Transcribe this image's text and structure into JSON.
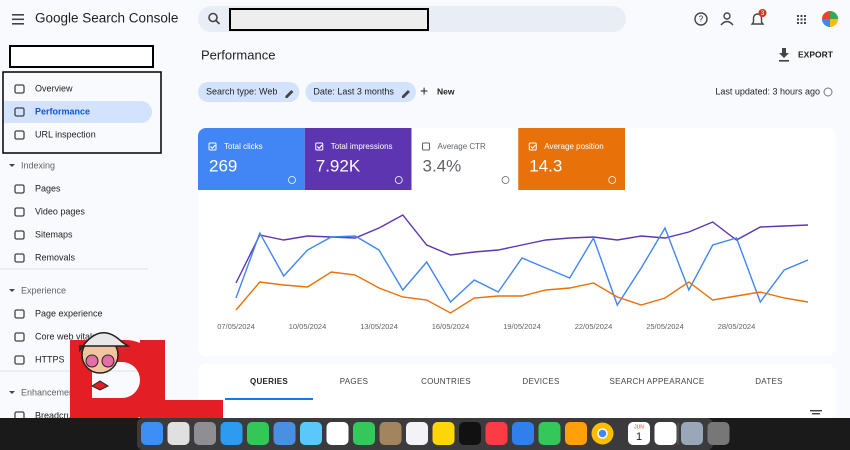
{
  "header": {
    "product": "Google Search Console",
    "notifications": "3"
  },
  "sidebar": {
    "top": [
      "Overview",
      "Performance",
      "URL inspection"
    ],
    "sections": [
      {
        "title": "Indexing",
        "items": [
          "Pages",
          "Video pages",
          "Sitemaps",
          "Removals"
        ]
      },
      {
        "title": "Experience",
        "items": [
          "Page experience",
          "Core web vitals",
          "HTTPS"
        ]
      },
      {
        "title": "Enhancements",
        "items": [
          "Breadcrumbs"
        ]
      }
    ]
  },
  "main": {
    "title": "Performance",
    "export": "EXPORT",
    "filters": [
      "Search type: Web",
      "Date: Last 3 months"
    ],
    "new": "New",
    "last_updated": "Last updated: 3 hours ago",
    "metrics": [
      {
        "label": "Total clicks",
        "value": "269",
        "color": "#4285f4",
        "checked": true
      },
      {
        "label": "Total impressions",
        "value": "7.92K",
        "color": "#5e35b1",
        "checked": true
      },
      {
        "label": "Average CTR",
        "value": "3.4%",
        "color": "#ffffff",
        "checked": false
      },
      {
        "label": "Average position",
        "value": "14.3",
        "color": "#e8710a",
        "checked": true
      }
    ],
    "tabs": [
      "QUERIES",
      "PAGES",
      "COUNTRIES",
      "DEVICES",
      "SEARCH APPEARANCE",
      "DATES"
    ]
  },
  "chart_data": {
    "type": "line",
    "categories": [
      "07/05/2024",
      null,
      null,
      "10/05/2024",
      null,
      null,
      "13/05/2024",
      null,
      null,
      "16/05/2024",
      null,
      null,
      "19/05/2024",
      null,
      null,
      "22/05/2024",
      null,
      null,
      "25/05/2024",
      null,
      null,
      "28/05/2024",
      null,
      null,
      null
    ],
    "series": [
      {
        "color": "#5e35b1",
        "values": [
          37,
          85,
          80,
          84,
          83,
          82,
          92,
          105,
          75,
          65,
          68,
          70,
          75,
          80,
          82,
          83,
          80,
          84,
          82,
          88,
          98,
          80,
          93,
          94,
          95
        ]
      },
      {
        "color": "#4285f4",
        "values": [
          22,
          87,
          44,
          70,
          83,
          84,
          70,
          30,
          58,
          18,
          40,
          28,
          62,
          52,
          42,
          82,
          15,
          52,
          92,
          30,
          75,
          82,
          18,
          50,
          60
        ]
      },
      {
        "color": "#e8710a",
        "values": [
          10,
          38,
          35,
          33,
          48,
          45,
          32,
          23,
          20,
          7,
          22,
          24,
          24,
          30,
          32,
          37,
          23,
          15,
          22,
          38,
          20,
          24,
          28,
          22,
          18
        ]
      }
    ],
    "ylim": [
      0,
      120
    ]
  },
  "dock": {
    "calendar_month": "JUN",
    "calendar_day": "1"
  }
}
